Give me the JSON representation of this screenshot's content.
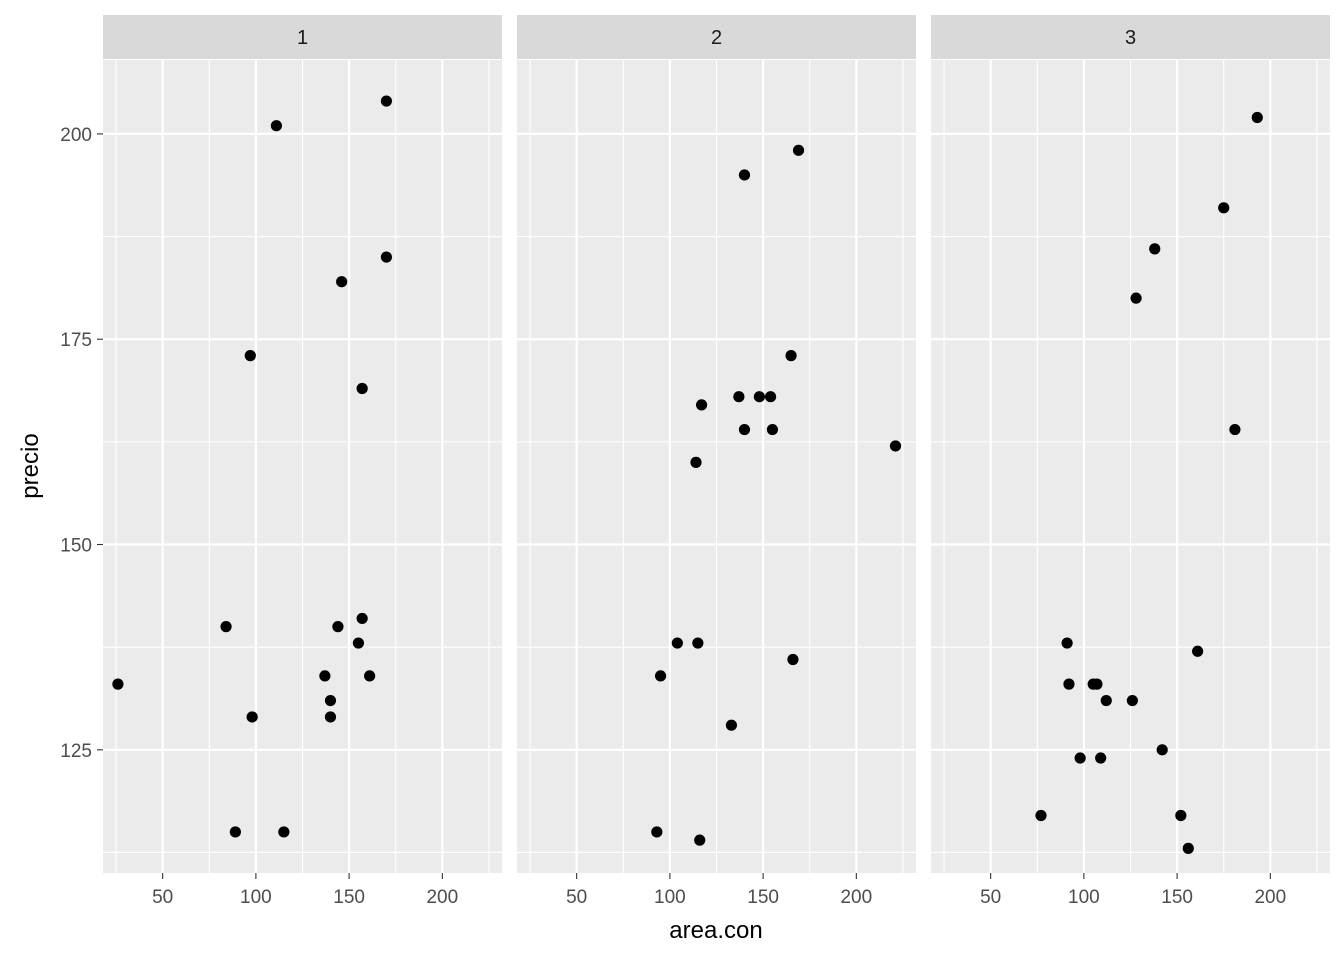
{
  "chart_data": {
    "type": "scatter",
    "facet_by": "panel",
    "xlabel": "area.con",
    "ylabel": "precio",
    "xlim": [
      18,
      232
    ],
    "ylim": [
      110,
      209
    ],
    "x_ticks": [
      50,
      100,
      150,
      200
    ],
    "y_ticks": [
      125,
      150,
      175,
      200
    ],
    "grid": true,
    "theme": "ggplot2-gray",
    "colors": {
      "panel_bg": "#ebebeb",
      "strip_bg": "#d9d9d9",
      "grid": "#ffffff",
      "point": "#000000"
    },
    "panels": [
      {
        "label": "1",
        "points": [
          {
            "x": 111,
            "y": 201
          },
          {
            "x": 170,
            "y": 204
          },
          {
            "x": 170,
            "y": 185
          },
          {
            "x": 146,
            "y": 182
          },
          {
            "x": 97,
            "y": 173
          },
          {
            "x": 157,
            "y": 169
          },
          {
            "x": 84,
            "y": 140
          },
          {
            "x": 144,
            "y": 140
          },
          {
            "x": 157,
            "y": 141
          },
          {
            "x": 155,
            "y": 138
          },
          {
            "x": 26,
            "y": 133
          },
          {
            "x": 137,
            "y": 134
          },
          {
            "x": 161,
            "y": 134
          },
          {
            "x": 140,
            "y": 131
          },
          {
            "x": 98,
            "y": 129
          },
          {
            "x": 140,
            "y": 129
          },
          {
            "x": 89,
            "y": 115
          },
          {
            "x": 115,
            "y": 115
          }
        ]
      },
      {
        "label": "2",
        "points": [
          {
            "x": 169,
            "y": 198
          },
          {
            "x": 140,
            "y": 195
          },
          {
            "x": 165,
            "y": 173
          },
          {
            "x": 137,
            "y": 168
          },
          {
            "x": 148,
            "y": 168
          },
          {
            "x": 154,
            "y": 168
          },
          {
            "x": 117,
            "y": 167
          },
          {
            "x": 140,
            "y": 164
          },
          {
            "x": 155,
            "y": 164
          },
          {
            "x": 221,
            "y": 162
          },
          {
            "x": 114,
            "y": 160
          },
          {
            "x": 104,
            "y": 138
          },
          {
            "x": 115,
            "y": 138
          },
          {
            "x": 166,
            "y": 136
          },
          {
            "x": 95,
            "y": 134
          },
          {
            "x": 133,
            "y": 128
          },
          {
            "x": 93,
            "y": 115
          },
          {
            "x": 116,
            "y": 114
          }
        ]
      },
      {
        "label": "3",
        "points": [
          {
            "x": 193,
            "y": 202
          },
          {
            "x": 175,
            "y": 191
          },
          {
            "x": 138,
            "y": 186
          },
          {
            "x": 128,
            "y": 180
          },
          {
            "x": 181,
            "y": 164
          },
          {
            "x": 91,
            "y": 138
          },
          {
            "x": 161,
            "y": 137
          },
          {
            "x": 92,
            "y": 133
          },
          {
            "x": 105,
            "y": 133
          },
          {
            "x": 107,
            "y": 133
          },
          {
            "x": 112,
            "y": 131
          },
          {
            "x": 126,
            "y": 131
          },
          {
            "x": 142,
            "y": 125
          },
          {
            "x": 98,
            "y": 124
          },
          {
            "x": 109,
            "y": 124
          },
          {
            "x": 77,
            "y": 117
          },
          {
            "x": 152,
            "y": 117
          },
          {
            "x": 156,
            "y": 113
          }
        ]
      }
    ]
  }
}
